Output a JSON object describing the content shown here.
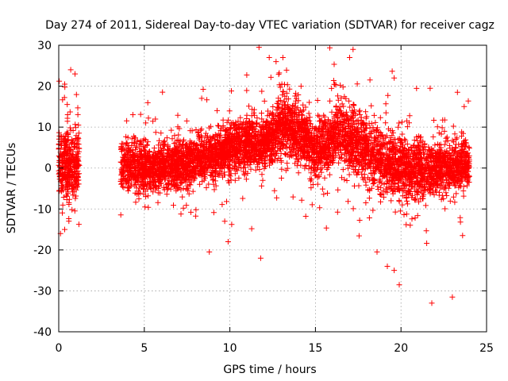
{
  "chart_data": {
    "type": "scatter",
    "title": "Day 274 of 2011, Sidereal Day-to-day VTEC variation (SDTVAR) for receiver cagz",
    "xlabel": "GPS time / hours",
    "ylabel": "SDTVAR / TECUs",
    "xlim": [
      0,
      25
    ],
    "ylim": [
      -40,
      30
    ],
    "xticks": [
      0,
      5,
      10,
      15,
      20,
      25
    ],
    "yticks": [
      -40,
      -30,
      -20,
      -10,
      0,
      10,
      20,
      30
    ],
    "xtick_labels": [
      "0",
      "5",
      "10",
      "15",
      "20",
      "25"
    ],
    "ytick_labels": [
      "-40",
      "-30",
      "-20",
      "-10",
      "0",
      "10",
      "20",
      "30"
    ],
    "grid": true,
    "marker": "plus",
    "series_color": "#ff0000",
    "data_segments": [
      [
        0,
        1.2
      ],
      [
        3.6,
        24
      ]
    ],
    "trend": [
      {
        "x": 0.0,
        "mean": 1,
        "spread": 4
      },
      {
        "x": 1.0,
        "mean": 1,
        "spread": 4
      },
      {
        "x": 3.6,
        "mean": 1,
        "spread": 3
      },
      {
        "x": 5.0,
        "mean": 0,
        "spread": 3
      },
      {
        "x": 7.0,
        "mean": 1,
        "spread": 3
      },
      {
        "x": 9.0,
        "mean": 3,
        "spread": 3
      },
      {
        "x": 10.5,
        "mean": 6,
        "spread": 3
      },
      {
        "x": 12.0,
        "mean": 6,
        "spread": 3
      },
      {
        "x": 13.0,
        "mean": 10,
        "spread": 4
      },
      {
        "x": 14.0,
        "mean": 9,
        "spread": 4
      },
      {
        "x": 15.0,
        "mean": 4,
        "spread": 3
      },
      {
        "x": 16.5,
        "mean": 9,
        "spread": 4
      },
      {
        "x": 18.0,
        "mean": 4,
        "spread": 4
      },
      {
        "x": 20.0,
        "mean": 0,
        "spread": 4
      },
      {
        "x": 22.0,
        "mean": 0,
        "spread": 3
      },
      {
        "x": 24.0,
        "mean": 1,
        "spread": 3
      }
    ],
    "notable_points": [
      {
        "x": 0.7,
        "y": 24
      },
      {
        "x": 0.95,
        "y": 23
      },
      {
        "x": 0.35,
        "y": 20.5
      },
      {
        "x": 0.1,
        "y": -16
      },
      {
        "x": 0.35,
        "y": -15
      },
      {
        "x": 8.8,
        "y": -20.5
      },
      {
        "x": 9.9,
        "y": -18
      },
      {
        "x": 11.7,
        "y": 29.5
      },
      {
        "x": 11.8,
        "y": -22
      },
      {
        "x": 12.3,
        "y": 27
      },
      {
        "x": 12.7,
        "y": 26
      },
      {
        "x": 13.1,
        "y": 27
      },
      {
        "x": 17.2,
        "y": 29
      },
      {
        "x": 17.0,
        "y": 27
      },
      {
        "x": 19.6,
        "y": 22
      },
      {
        "x": 18.6,
        "y": -20.5
      },
      {
        "x": 19.2,
        "y": -24
      },
      {
        "x": 19.6,
        "y": -25
      },
      {
        "x": 19.9,
        "y": -28.5
      },
      {
        "x": 21.8,
        "y": -33
      },
      {
        "x": 23.0,
        "y": -31.5
      },
      {
        "x": 21.7,
        "y": 19.5
      },
      {
        "x": 23.3,
        "y": 18.5
      },
      {
        "x": 23.6,
        "y": -16.5
      }
    ],
    "approx_point_count": 12000
  }
}
